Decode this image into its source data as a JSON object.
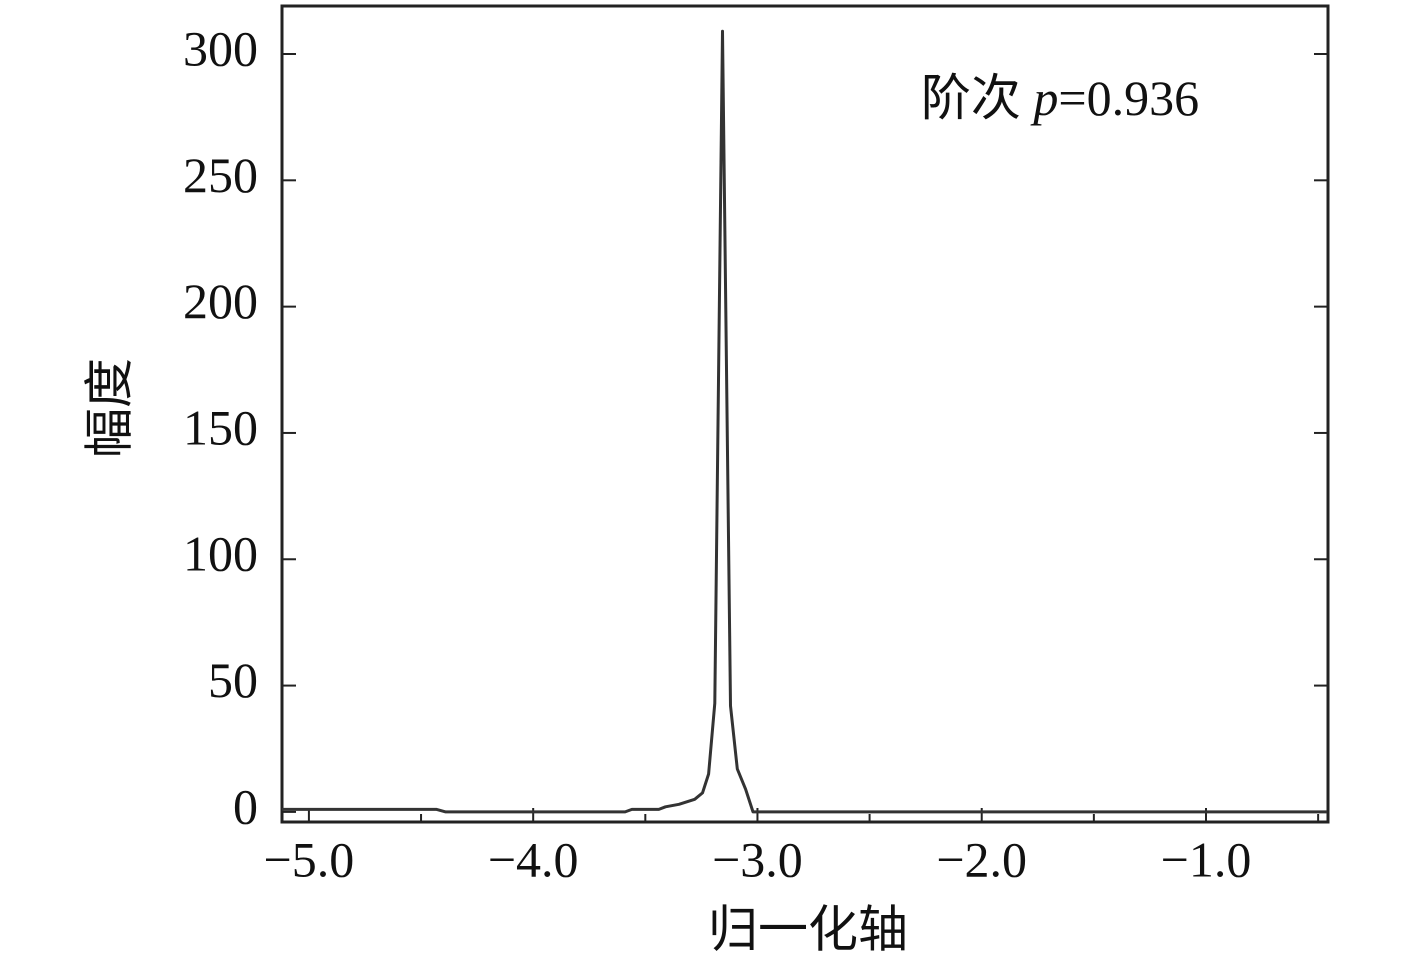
{
  "chart_data": {
    "type": "line",
    "xlabel": "归一化轴",
    "ylabel": "幅度",
    "annotation": {
      "prefix": "阶次 ",
      "variable": "p",
      "suffix": "=0.936"
    },
    "x": [
      -5.12,
      -4.62,
      -4.43,
      -4.39,
      -3.59,
      -3.56,
      -3.44,
      -3.41,
      -3.35,
      -3.28,
      -3.245,
      -3.218,
      -3.19,
      -3.156,
      -3.12,
      -3.09,
      -3.053,
      -3.02,
      -0.46
    ],
    "values": [
      1,
      1,
      1,
      0,
      0,
      1,
      1,
      2,
      3,
      5,
      7.5,
      15,
      43,
      309,
      42,
      17,
      9,
      0,
      0
    ],
    "color": "#333333",
    "xlim": [
      -5.12,
      -0.456
    ],
    "ylim": [
      -4,
      319
    ],
    "xticks": [
      {
        "value": -5,
        "label": "−5.0"
      },
      {
        "value": -4,
        "label": "−4.0"
      },
      {
        "value": -3,
        "label": "−3.0"
      },
      {
        "value": -2,
        "label": "−2.0"
      },
      {
        "value": -1,
        "label": "−1.0"
      }
    ],
    "xminorticks": [
      -4.5,
      -3.5,
      -2.5,
      -1.5,
      -0.5
    ],
    "yticks": [
      0,
      50,
      100,
      150,
      200,
      250,
      300
    ],
    "grid": false
  }
}
